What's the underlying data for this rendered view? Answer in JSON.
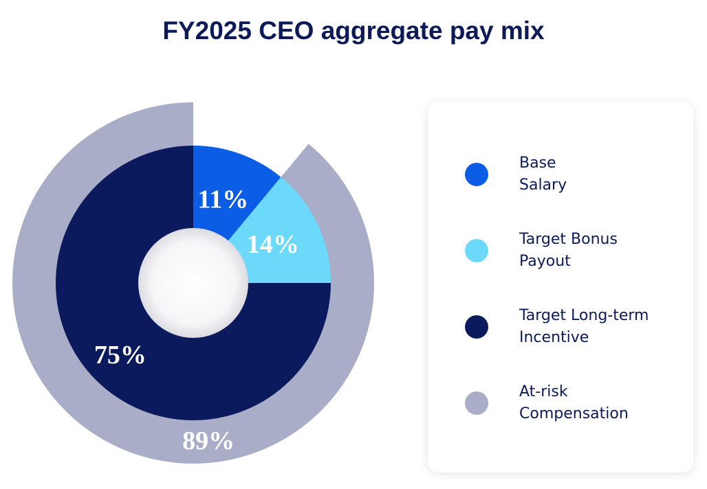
{
  "chart_data": {
    "type": "pie",
    "title": "FY2025 CEO aggregate pay mix",
    "categories": [
      "Base Salary",
      "Target Bonus Payout",
      "Target Long-term Incentive"
    ],
    "values": [
      11,
      14,
      75
    ],
    "value_labels": [
      "11%",
      "14%",
      "75%"
    ],
    "colors": [
      "#0b5de6",
      "#6cd8fa",
      "#0a1a5c"
    ],
    "ring": {
      "name": "At-risk Compensation",
      "value": 89,
      "value_label": "89%",
      "color": "#a9adc8"
    }
  }
}
